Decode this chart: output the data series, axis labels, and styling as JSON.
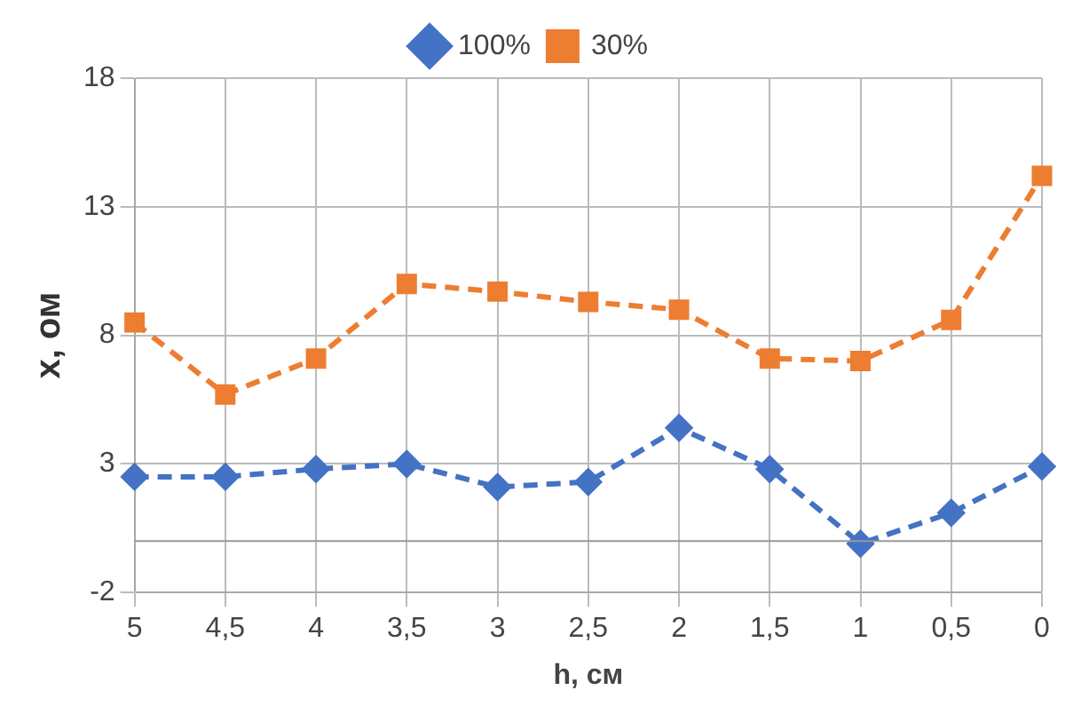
{
  "chart_data": {
    "type": "line",
    "xlabel": "h, см",
    "ylabel": "x, ом",
    "categories": [
      "5",
      "4,5",
      "4",
      "3,5",
      "3",
      "2,5",
      "2",
      "1,5",
      "1",
      "0,5",
      "0"
    ],
    "series": [
      {
        "name": "100%",
        "color": "#4472c4",
        "marker": "diamond",
        "values": [
          2.5,
          2.5,
          2.8,
          3.0,
          2.1,
          2.3,
          4.4,
          2.8,
          -0.1,
          1.1,
          2.9
        ]
      },
      {
        "name": "30%",
        "color": "#ed7d31",
        "marker": "square",
        "values": [
          8.5,
          5.7,
          7.1,
          10.0,
          9.7,
          9.3,
          9.0,
          7.1,
          7.0,
          8.6,
          14.2
        ]
      }
    ],
    "ylim": [
      -2,
      18
    ],
    "yticks": [
      -2,
      3,
      8,
      13,
      18
    ],
    "grid": true,
    "legend": "top",
    "line_style": "dashed",
    "ref_lines": [
      {
        "axis": "y",
        "value": 0,
        "color": "#999999"
      }
    ]
  }
}
